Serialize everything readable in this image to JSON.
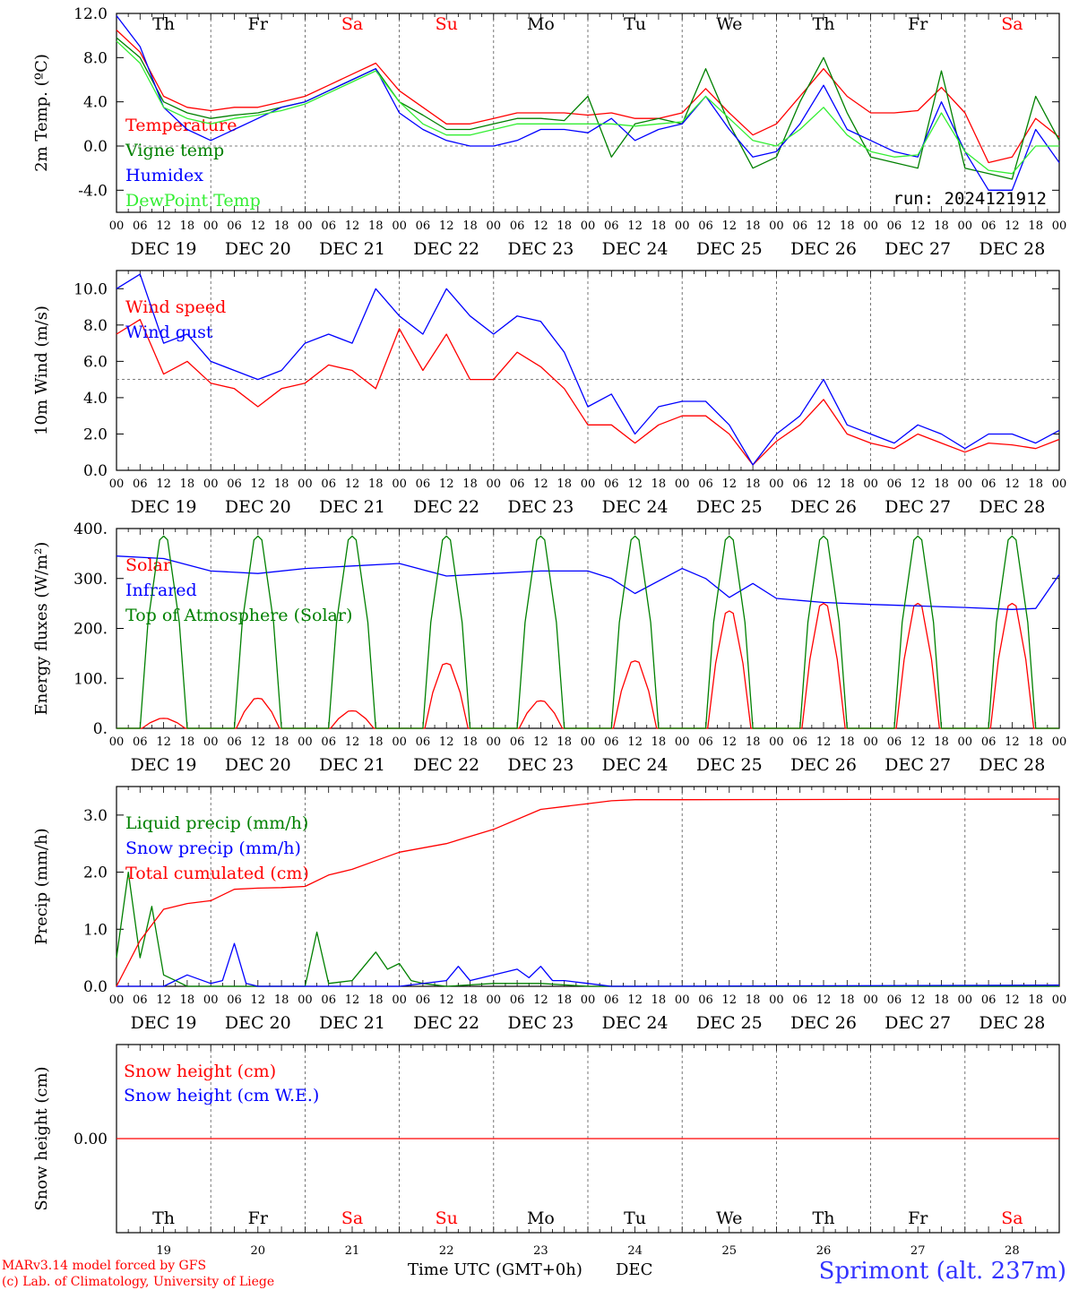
{
  "hours_label": [
    "00",
    "06",
    "12",
    "18"
  ],
  "dates": [
    "DEC 19",
    "DEC 20",
    "DEC 21",
    "DEC 22",
    "DEC 23",
    "DEC 24",
    "DEC 25",
    "DEC 26",
    "DEC 27",
    "DEC 28"
  ],
  "day_numbers": [
    "19",
    "20",
    "21",
    "22",
    "23",
    "24",
    "25",
    "26",
    "27",
    "28"
  ],
  "weekdays": [
    {
      "label": "Th",
      "color": "#000000"
    },
    {
      "label": "Fr",
      "color": "#000000"
    },
    {
      "label": "Sa",
      "color": "#ff0000"
    },
    {
      "label": "Su",
      "color": "#ff0000"
    },
    {
      "label": "Mo",
      "color": "#000000"
    },
    {
      "label": "Tu",
      "color": "#000000"
    },
    {
      "label": "We",
      "color": "#000000"
    },
    {
      "label": "Th",
      "color": "#000000"
    },
    {
      "label": "Fr",
      "color": "#000000"
    },
    {
      "label": "Sa",
      "color": "#ff0000"
    }
  ],
  "footer": {
    "credit1": "MARv3.14 model forced by GFS",
    "credit2": "(c) Lab. of Climatology, University of Liege",
    "time_label": "Time UTC (GMT+0h)",
    "month_label": "DEC",
    "location": "Sprimont (alt. 237m)"
  },
  "run_label": "run: 2024121912",
  "chart_data": [
    {
      "type": "line",
      "ylabel": "2m Temp. (ºC)",
      "ylim": [
        -6,
        12
      ],
      "yticks": [
        -4,
        0,
        4,
        8,
        12
      ],
      "ytick_labels": [
        "-4.0",
        "0.0",
        "4.0",
        "8.0",
        "12.0"
      ],
      "dashed_hline": 0,
      "x_unit": "hours since DEC 19 00 UTC",
      "series": [
        {
          "name": "Temperature",
          "color": "#ff0000",
          "x": [
            0,
            6,
            12,
            18,
            24,
            30,
            36,
            42,
            48,
            54,
            60,
            66,
            72,
            78,
            84,
            90,
            96,
            102,
            108,
            114,
            120,
            126,
            132,
            138,
            144,
            150,
            156,
            162,
            168,
            174,
            180,
            186,
            192,
            198,
            204,
            210,
            216,
            222,
            228,
            234,
            240
          ],
          "y": [
            10.5,
            8.5,
            4.5,
            3.5,
            3.2,
            3.5,
            3.5,
            4,
            4.5,
            5.5,
            6.5,
            7.5,
            5,
            3.5,
            2,
            2,
            2.5,
            3,
            3,
            3,
            2.8,
            3,
            2.5,
            2.5,
            3,
            5.2,
            3,
            1,
            2,
            4.5,
            7,
            4.5,
            3,
            3,
            3.2,
            5.3,
            3,
            -1.5,
            -1,
            2.5,
            0.8
          ]
        },
        {
          "name": "Vigne temp",
          "color": "#008000",
          "x": [
            0,
            6,
            12,
            18,
            24,
            30,
            36,
            42,
            48,
            54,
            60,
            66,
            72,
            78,
            84,
            90,
            96,
            102,
            108,
            114,
            120,
            126,
            132,
            138,
            144,
            150,
            156,
            162,
            168,
            174,
            180,
            186,
            192,
            198,
            204,
            210,
            216,
            222,
            228,
            234,
            240
          ],
          "y": [
            9.8,
            8,
            4,
            3,
            2.5,
            2.8,
            3,
            3.5,
            4,
            5,
            6,
            7,
            4,
            2.8,
            1.5,
            1.5,
            2,
            2.5,
            2.5,
            2.3,
            4.5,
            -1,
            2,
            2.5,
            2,
            7,
            2,
            -2,
            -1,
            4,
            8,
            3,
            -1,
            -1.5,
            -2,
            6.8,
            -2,
            -2.5,
            -3,
            4.5,
            0.5
          ]
        },
        {
          "name": "Humidex",
          "color": "#0000ff",
          "x": [
            0,
            6,
            12,
            18,
            24,
            30,
            36,
            42,
            48,
            54,
            60,
            66,
            72,
            78,
            84,
            90,
            96,
            102,
            108,
            114,
            120,
            126,
            132,
            138,
            144,
            150,
            156,
            162,
            168,
            174,
            180,
            186,
            192,
            198,
            204,
            210,
            216,
            222,
            228,
            234,
            240
          ],
          "y": [
            11.8,
            9,
            3.5,
            1.5,
            0.5,
            1.5,
            2.5,
            3.5,
            4,
            5,
            6,
            7,
            3,
            1.5,
            0.5,
            0,
            0,
            0.5,
            1.5,
            1.5,
            1.2,
            2.5,
            0.5,
            1.5,
            2,
            4.5,
            1.5,
            -1,
            -0.5,
            2,
            5.5,
            1.5,
            0.5,
            -0.5,
            -1,
            4,
            -0.5,
            -4,
            -4,
            1.5,
            -1.5
          ]
        },
        {
          "name": "DewPoint Temp",
          "color": "#33ee33",
          "x": [
            0,
            6,
            12,
            18,
            24,
            30,
            36,
            42,
            48,
            54,
            60,
            66,
            72,
            78,
            84,
            90,
            96,
            102,
            108,
            114,
            120,
            126,
            132,
            138,
            144,
            150,
            156,
            162,
            168,
            174,
            180,
            186,
            192,
            198,
            204,
            210,
            216,
            222,
            228,
            234,
            240
          ],
          "y": [
            9.5,
            7.5,
            3.5,
            2.5,
            2,
            2.5,
            2.8,
            3.2,
            3.8,
            4.8,
            5.8,
            6.8,
            4,
            2,
            1,
            1,
            1.5,
            2,
            2,
            2,
            2,
            2,
            1.8,
            2,
            2.2,
            4.5,
            2.5,
            0.5,
            0,
            1.5,
            3.5,
            1,
            -0.5,
            -1,
            -0.8,
            3,
            -0.5,
            -2.2,
            -2.5,
            0,
            0
          ]
        }
      ]
    },
    {
      "type": "line",
      "ylabel": "10m Wind (m/s)",
      "ylim": [
        0,
        11
      ],
      "yticks": [
        0,
        2,
        4,
        6,
        8,
        10
      ],
      "ytick_labels": [
        "0.0",
        "2.0",
        "4.0",
        "6.0",
        "8.0",
        "10.0"
      ],
      "dashed_hline": 5,
      "x_unit": "hours since DEC 19 00 UTC",
      "series": [
        {
          "name": "Wind speed",
          "color": "#ff0000",
          "x": [
            0,
            6,
            12,
            18,
            24,
            30,
            36,
            42,
            48,
            54,
            60,
            66,
            72,
            78,
            84,
            90,
            96,
            102,
            108,
            114,
            120,
            126,
            132,
            138,
            144,
            150,
            156,
            162,
            168,
            174,
            180,
            186,
            192,
            198,
            204,
            210,
            216,
            222,
            228,
            234,
            240
          ],
          "y": [
            7.5,
            8.3,
            5.3,
            6,
            4.8,
            4.5,
            3.5,
            4.5,
            4.8,
            5.8,
            5.5,
            4.5,
            7.8,
            5.5,
            7.5,
            5,
            5,
            6.5,
            5.7,
            4.5,
            2.5,
            2.5,
            1.5,
            2.5,
            3,
            3,
            2,
            0.3,
            1.6,
            2.5,
            3.9,
            2,
            1.5,
            1.2,
            2,
            1.5,
            1,
            1.5,
            1.4,
            1.2,
            1.7
          ]
        },
        {
          "name": "Wind gust",
          "color": "#0000ff",
          "x": [
            0,
            6,
            12,
            18,
            24,
            30,
            36,
            42,
            48,
            54,
            60,
            66,
            72,
            78,
            84,
            90,
            96,
            102,
            108,
            114,
            120,
            126,
            132,
            138,
            144,
            150,
            156,
            162,
            168,
            174,
            180,
            186,
            192,
            198,
            204,
            210,
            216,
            222,
            228,
            234,
            240
          ],
          "y": [
            10,
            10.8,
            7,
            7.5,
            6,
            5.5,
            5,
            5.5,
            7,
            7.5,
            7,
            10,
            8.5,
            7.5,
            10,
            8.5,
            7.5,
            8.5,
            8.2,
            6.5,
            3.5,
            4.2,
            2,
            3.5,
            3.8,
            3.8,
            2.5,
            0.3,
            2,
            3,
            5,
            2.5,
            2,
            1.5,
            2.5,
            2,
            1.2,
            2,
            2,
            1.5,
            2.2
          ]
        }
      ]
    },
    {
      "type": "line",
      "ylabel": "Energy fluxes (W/m²)",
      "ylim": [
        0,
        400
      ],
      "yticks": [
        0,
        100,
        200,
        300,
        400
      ],
      "ytick_labels": [
        "0.",
        "100.",
        "200.",
        "300.",
        "400."
      ],
      "x_unit": "hours since DEC 19 00 UTC",
      "daytime_peak_hours": [
        12,
        36,
        60,
        84,
        108,
        132,
        156,
        180,
        204,
        228
      ],
      "series": [
        {
          "name": "Solar",
          "color": "#ff0000",
          "daily_peaks": [
            20,
            60,
            35,
            130,
            55,
            135,
            235,
            250,
            250,
            250
          ]
        },
        {
          "name": "Infrared",
          "color": "#0000ff",
          "x": [
            0,
            12,
            24,
            36,
            48,
            60,
            72,
            84,
            96,
            108,
            120,
            126,
            132,
            144,
            150,
            156,
            162,
            168,
            180,
            192,
            204,
            216,
            228,
            234,
            240
          ],
          "y": [
            345,
            340,
            315,
            310,
            320,
            325,
            330,
            305,
            310,
            315,
            315,
            300,
            270,
            320,
            300,
            262,
            290,
            260,
            252,
            248,
            245,
            242,
            238,
            240,
            308
          ]
        },
        {
          "name": "Top of Atmosphere (Solar)",
          "color": "#008000",
          "daily_peaks": [
            385,
            385,
            385,
            385,
            385,
            385,
            385,
            385,
            385,
            385
          ]
        }
      ]
    },
    {
      "type": "line",
      "ylabel": "Precip (mm/h)",
      "ylim": [
        0,
        3.5
      ],
      "yticks": [
        0,
        1,
        2,
        3
      ],
      "ytick_labels": [
        "0.0",
        "1.0",
        "2.0",
        "3.0"
      ],
      "x_unit": "hours since DEC 19 00 UTC",
      "series": [
        {
          "name": "Liquid precip (mm/h)",
          "color": "#008000",
          "x": [
            0,
            3,
            6,
            9,
            12,
            15,
            18,
            24,
            30,
            36,
            42,
            48,
            51,
            54,
            60,
            66,
            69,
            72,
            75,
            78,
            84,
            96,
            108,
            120,
            132,
            240
          ],
          "y": [
            0.5,
            2,
            0.5,
            1.4,
            0.2,
            0.1,
            0,
            0,
            0,
            0,
            0,
            0,
            0.95,
            0.05,
            0.1,
            0.6,
            0.3,
            0.4,
            0.1,
            0.05,
            0,
            0.05,
            0.05,
            0,
            0,
            0
          ]
        },
        {
          "name": "Snow precip (mm/h)",
          "color": "#0000ff",
          "x": [
            0,
            12,
            18,
            24,
            27,
            30,
            33,
            36,
            48,
            60,
            72,
            84,
            87,
            90,
            96,
            102,
            105,
            108,
            111,
            114,
            120,
            126,
            132,
            240
          ],
          "y": [
            0,
            0,
            0.2,
            0.05,
            0.1,
            0.75,
            0.05,
            0,
            0,
            0,
            0,
            0.1,
            0.35,
            0.1,
            0.2,
            0.3,
            0.15,
            0.35,
            0.1,
            0.1,
            0.05,
            0,
            0,
            0.02
          ]
        },
        {
          "name": "Total cumulated (cm)",
          "color": "#ff0000",
          "x": [
            0,
            6,
            12,
            18,
            24,
            30,
            36,
            42,
            48,
            54,
            60,
            66,
            72,
            84,
            96,
            108,
            114,
            120,
            126,
            132,
            144,
            240
          ],
          "y": [
            0,
            0.8,
            1.35,
            1.45,
            1.5,
            1.7,
            1.72,
            1.73,
            1.75,
            1.95,
            2.05,
            2.2,
            2.35,
            2.5,
            2.75,
            3.1,
            3.15,
            3.2,
            3.25,
            3.27,
            3.27,
            3.28
          ]
        }
      ]
    },
    {
      "type": "line",
      "ylabel": "Snow height (cm)",
      "ylim": [
        -1,
        1
      ],
      "yticks": [
        0
      ],
      "ytick_labels": [
        "0.00"
      ],
      "x_unit": "hours since DEC 19 00 UTC",
      "series": [
        {
          "name": "Snow height (cm)",
          "color": "#ff0000",
          "x": [
            0,
            240
          ],
          "y": [
            0,
            0
          ]
        },
        {
          "name": "Snow height (cm W.E.)",
          "color": "#0000ff",
          "x": [],
          "y": []
        }
      ]
    }
  ]
}
